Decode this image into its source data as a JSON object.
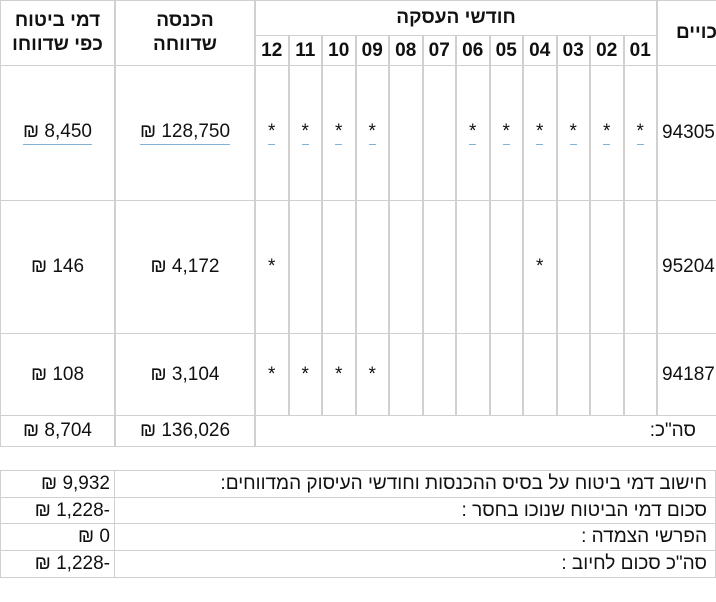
{
  "table": {
    "headers": {
      "insurance": [
        "דמי ביטוח",
        "כפי שדווחו"
      ],
      "income": [
        "הכנסה",
        "שדווחה"
      ],
      "months_title": "חודשי העסקה",
      "months": [
        "01",
        "02",
        "03",
        "04",
        "05",
        "06",
        "07",
        "08",
        "09",
        "10",
        "11",
        "12"
      ],
      "id": "כויים"
    },
    "rows": [
      {
        "id": "94305",
        "income": "₪ 128,750",
        "insurance": "₪ 8,450",
        "months": [
          "*",
          "*",
          "*",
          "*",
          "*",
          "*",
          null,
          null,
          "*",
          "*",
          "*",
          "*"
        ]
      },
      {
        "id": "95204",
        "income": "₪ 4,172",
        "insurance": "₪ 146",
        "months": [
          null,
          null,
          null,
          "*",
          null,
          null,
          null,
          null,
          null,
          null,
          null,
          "*"
        ]
      },
      {
        "id": "94187",
        "income": "₪ 3,104",
        "insurance": "₪ 108",
        "months": [
          null,
          null,
          null,
          null,
          null,
          null,
          null,
          null,
          "*",
          "*",
          "*",
          "*"
        ]
      }
    ],
    "total": {
      "label": "סה\"כ:",
      "income": "₪ 136,026",
      "insurance": "₪ 8,704"
    }
  },
  "summary": {
    "rows": [
      {
        "label": "חישוב דמי ביטוח על בסיס ההכנסות וחודשי העיסוק המדווחים:",
        "value": "₪ 9,932"
      },
      {
        "label": "סכום דמי הביטוח שנוכו בחסר :",
        "value": "₪ 1,228-"
      },
      {
        "label": "הפרשי הצמדה :",
        "value": "₪ 0"
      },
      {
        "label": "סה\"כ סכום לחיוב :",
        "value": "₪ 1,228-"
      }
    ]
  }
}
